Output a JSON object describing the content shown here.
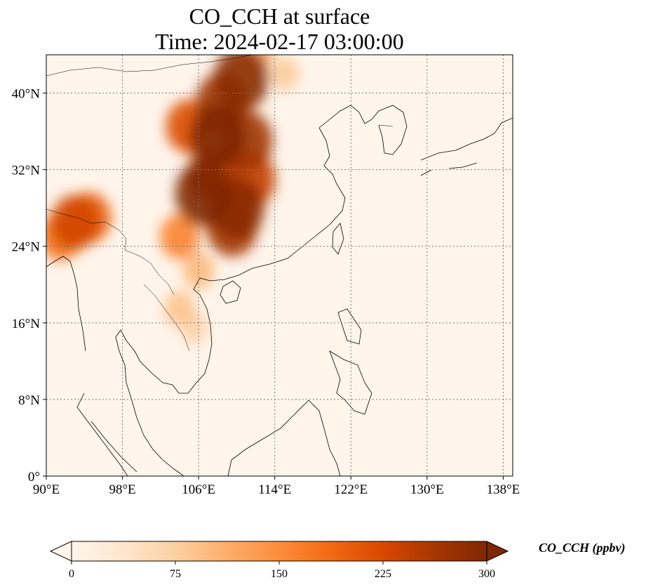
{
  "title": "CO_CCH at surface",
  "subtitle": "Time: 2024-02-17 03:00:00",
  "map": {
    "lon_range": [
      90,
      139
    ],
    "lat_range": [
      0,
      44
    ],
    "lon_ticks": [
      {
        "value": 90,
        "label": "90°E"
      },
      {
        "value": 98,
        "label": "98°E"
      },
      {
        "value": 106,
        "label": "106°E"
      },
      {
        "value": 114,
        "label": "114°E"
      },
      {
        "value": 122,
        "label": "122°E"
      },
      {
        "value": 130,
        "label": "130°E"
      },
      {
        "value": 138,
        "label": "138°E"
      }
    ],
    "lat_ticks": [
      {
        "value": 0,
        "label": "0°"
      },
      {
        "value": 8,
        "label": "8°N"
      },
      {
        "value": 16,
        "label": "16°N"
      },
      {
        "value": 24,
        "label": "24°N"
      },
      {
        "value": 32,
        "label": "32°N"
      },
      {
        "value": 40,
        "label": "40°N"
      }
    ],
    "gridlines": true,
    "background_color": "#fff5eb",
    "plumes": [
      {
        "lon": 106.5,
        "lat": 29.5,
        "value": 300
      },
      {
        "lon": 110.0,
        "lat": 28.0,
        "value": 290
      },
      {
        "lon": 108.0,
        "lat": 35.5,
        "value": 300
      },
      {
        "lon": 110.5,
        "lat": 41.5,
        "value": 290
      },
      {
        "lon": 108.5,
        "lat": 39.0,
        "value": 270
      },
      {
        "lon": 111.0,
        "lat": 35.0,
        "value": 270
      },
      {
        "lon": 109.5,
        "lat": 26.0,
        "value": 260
      },
      {
        "lon": 105.0,
        "lat": 36.5,
        "value": 220
      },
      {
        "lon": 107.5,
        "lat": 31.5,
        "value": 250
      },
      {
        "lon": 111.5,
        "lat": 31.0,
        "value": 240
      },
      {
        "lon": 104.0,
        "lat": 25.0,
        "value": 160
      },
      {
        "lon": 112.0,
        "lat": 44.5,
        "value": 120
      },
      {
        "lon": 115.0,
        "lat": 42.0,
        "value": 80
      },
      {
        "lon": 93.0,
        "lat": 26.5,
        "value": 230
      },
      {
        "lon": 94.5,
        "lat": 27.0,
        "value": 200
      },
      {
        "lon": 91.5,
        "lat": 25.0,
        "value": 180
      },
      {
        "lon": 104.0,
        "lat": 17.5,
        "value": 90
      },
      {
        "lon": 106.0,
        "lat": 21.5,
        "value": 100
      },
      {
        "lon": 105.5,
        "lat": 15.5,
        "value": 70
      }
    ]
  },
  "colorbar": {
    "colormap": [
      "#fff5eb",
      "#fee6ce",
      "#fdd0a2",
      "#fdae6b",
      "#fd8d3c",
      "#f16913",
      "#d94801",
      "#a63603",
      "#7f2704"
    ],
    "range": [
      0,
      300
    ],
    "ticks": [
      {
        "value": 0,
        "label": "0"
      },
      {
        "value": 75,
        "label": "75"
      },
      {
        "value": 150,
        "label": "150"
      },
      {
        "value": 225,
        "label": "225"
      },
      {
        "value": 300,
        "label": "300"
      }
    ],
    "extend": "both",
    "label": "CO_CCH (ppbv)"
  }
}
